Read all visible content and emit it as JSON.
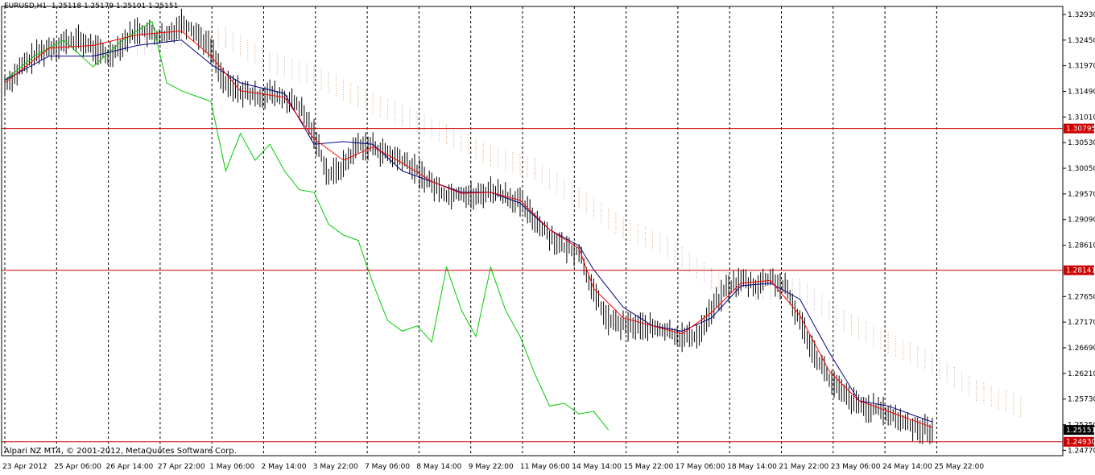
{
  "header": {
    "symbol_tf": "EURUSD,H1",
    "quote": "1.25118 1.25179 1.25101 1.25151"
  },
  "footer": {
    "copyright": "Alpari NZ MT4, © 2001-2012, MetaQuotes Software Corp."
  },
  "colors": {
    "background": "#ffffff",
    "grid": "#000000",
    "candles": "#000000",
    "tenkan": "#ff0000",
    "kijun": "#000080",
    "chikou": "#00cc00",
    "kumo_a": "#d2a679",
    "kumo_b": "#c8a2c8",
    "level": "#cc0000"
  },
  "chart_data": {
    "type": "line",
    "symbol": "EURUSD",
    "timeframe": "H1",
    "ylim": [
      1.2467,
      1.3308
    ],
    "y_ticks": [
      "1.32930",
      "1.32450",
      "1.31970",
      "1.31490",
      "1.31010",
      "1.30530",
      "1.30050",
      "1.29570",
      "1.29090",
      "1.28610",
      "1.27650",
      "1.27170",
      "1.26690",
      "1.26210",
      "1.25730",
      "1.25250",
      "1.24770"
    ],
    "x_ticks": [
      "23 Apr 2012",
      "25 Apr 06:00",
      "26 Apr 14:00",
      "27 Apr 22:00",
      "1 May 06:00",
      "2 May 14:00",
      "3 May 22:00",
      "7 May 06:00",
      "8 May 14:00",
      "9 May 22:00",
      "11 May 06:00",
      "14 May 14:00",
      "15 May 22:00",
      "17 May 06:00",
      "18 May 14:00",
      "21 May 22:00",
      "23 May 06:00",
      "24 May 14:00",
      "25 May 22:00"
    ],
    "horizontal_levels": [
      {
        "value": 1.30795,
        "label": "1.30795"
      },
      {
        "value": 1.28141,
        "label": "1.28141"
      },
      {
        "value": 1.2493,
        "label": "1.24930"
      }
    ],
    "current_price": {
      "value": 1.25151,
      "label": "1.25151"
    },
    "close_path": [
      [
        0,
        1.316
      ],
      [
        2,
        1.319
      ],
      [
        4,
        1.3215
      ],
      [
        6,
        1.323
      ],
      [
        8,
        1.324
      ],
      [
        10,
        1.3245
      ],
      [
        12,
        1.323
      ],
      [
        14,
        1.3215
      ],
      [
        16,
        1.324
      ],
      [
        18,
        1.3265
      ],
      [
        20,
        1.3255
      ],
      [
        22,
        1.325
      ],
      [
        24,
        1.328
      ],
      [
        26,
        1.326
      ],
      [
        28,
        1.323
      ],
      [
        30,
        1.316
      ],
      [
        32,
        1.315
      ],
      [
        34,
        1.314
      ],
      [
        36,
        1.3145
      ],
      [
        38,
        1.3135
      ],
      [
        40,
        1.312
      ],
      [
        42,
        1.307
      ],
      [
        44,
        1.299
      ],
      [
        46,
        1.301
      ],
      [
        48,
        1.305
      ],
      [
        50,
        1.3045
      ],
      [
        52,
        1.303
      ],
      [
        54,
        1.302
      ],
      [
        56,
        1.3
      ],
      [
        58,
        1.2975
      ],
      [
        60,
        1.2955
      ],
      [
        62,
        1.296
      ],
      [
        64,
        1.295
      ],
      [
        66,
        1.2965
      ],
      [
        68,
        1.2955
      ],
      [
        70,
        1.294
      ],
      [
        72,
        1.291
      ],
      [
        74,
        1.288
      ],
      [
        76,
        1.2855
      ],
      [
        78,
        1.285
      ],
      [
        80,
        1.277
      ],
      [
        82,
        1.272
      ],
      [
        84,
        1.271
      ],
      [
        86,
        1.271
      ],
      [
        88,
        1.2705
      ],
      [
        90,
        1.27
      ],
      [
        92,
        1.269
      ],
      [
        94,
        1.269
      ],
      [
        96,
        1.274
      ],
      [
        98,
        1.278
      ],
      [
        100,
        1.2795
      ],
      [
        102,
        1.2785
      ],
      [
        104,
        1.28
      ],
      [
        106,
        1.278
      ],
      [
        108,
        1.272
      ],
      [
        110,
        1.266
      ],
      [
        112,
        1.261
      ],
      [
        114,
        1.258
      ],
      [
        116,
        1.256
      ],
      [
        118,
        1.2555
      ],
      [
        120,
        1.2545
      ],
      [
        122,
        1.253
      ],
      [
        124,
        1.252
      ],
      [
        126,
        1.2515
      ]
    ],
    "chikou_path": [
      [
        0,
        1.317
      ],
      [
        4,
        1.3215
      ],
      [
        8,
        1.3245
      ],
      [
        12,
        1.3195
      ],
      [
        16,
        1.3245
      ],
      [
        20,
        1.328
      ],
      [
        22,
        1.3165
      ],
      [
        24,
        1.315
      ],
      [
        26,
        1.314
      ],
      [
        28,
        1.313
      ],
      [
        30,
        1.3
      ],
      [
        32,
        1.307
      ],
      [
        34,
        1.302
      ],
      [
        36,
        1.305
      ],
      [
        38,
        1.3
      ],
      [
        40,
        1.2965
      ],
      [
        42,
        1.296
      ],
      [
        44,
        1.29
      ],
      [
        46,
        1.288
      ],
      [
        48,
        1.287
      ],
      [
        50,
        1.279
      ],
      [
        52,
        1.272
      ],
      [
        54,
        1.27
      ],
      [
        56,
        1.271
      ],
      [
        58,
        1.268
      ],
      [
        60,
        1.282
      ],
      [
        62,
        1.274
      ],
      [
        64,
        1.269
      ],
      [
        66,
        1.282
      ],
      [
        68,
        1.274
      ],
      [
        70,
        1.269
      ],
      [
        72,
        1.262
      ],
      [
        74,
        1.256
      ],
      [
        76,
        1.2565
      ],
      [
        78,
        1.2545
      ],
      [
        80,
        1.255
      ],
      [
        82,
        1.2515
      ]
    ],
    "tenkan_path": [
      [
        0,
        1.3165
      ],
      [
        6,
        1.323
      ],
      [
        12,
        1.3235
      ],
      [
        18,
        1.3255
      ],
      [
        24,
        1.3262
      ],
      [
        28,
        1.3215
      ],
      [
        32,
        1.315
      ],
      [
        38,
        1.3138
      ],
      [
        42,
        1.306
      ],
      [
        46,
        1.302
      ],
      [
        50,
        1.3045
      ],
      [
        54,
        1.3015
      ],
      [
        58,
        1.298
      ],
      [
        62,
        1.2958
      ],
      [
        66,
        1.296
      ],
      [
        70,
        1.2945
      ],
      [
        74,
        1.289
      ],
      [
        78,
        1.2855
      ],
      [
        80,
        1.278
      ],
      [
        84,
        1.2725
      ],
      [
        88,
        1.271
      ],
      [
        92,
        1.2695
      ],
      [
        96,
        1.2735
      ],
      [
        100,
        1.279
      ],
      [
        104,
        1.2795
      ],
      [
        108,
        1.273
      ],
      [
        112,
        1.2625
      ],
      [
        116,
        1.257
      ],
      [
        120,
        1.255
      ],
      [
        124,
        1.253
      ],
      [
        126,
        1.252
      ]
    ],
    "kijun_path": [
      [
        0,
        1.317
      ],
      [
        6,
        1.3215
      ],
      [
        12,
        1.3215
      ],
      [
        18,
        1.3235
      ],
      [
        24,
        1.3245
      ],
      [
        28,
        1.32
      ],
      [
        32,
        1.3165
      ],
      [
        38,
        1.3145
      ],
      [
        42,
        1.305
      ],
      [
        46,
        1.3055
      ],
      [
        50,
        1.305
      ],
      [
        54,
        1.3
      ],
      [
        58,
        1.298
      ],
      [
        62,
        1.296
      ],
      [
        66,
        1.296
      ],
      [
        70,
        1.294
      ],
      [
        74,
        1.289
      ],
      [
        78,
        1.286
      ],
      [
        80,
        1.2815
      ],
      [
        84,
        1.2745
      ],
      [
        88,
        1.271
      ],
      [
        92,
        1.27
      ],
      [
        96,
        1.2725
      ],
      [
        100,
        1.2785
      ],
      [
        104,
        1.279
      ],
      [
        108,
        1.276
      ],
      [
        112,
        1.266
      ],
      [
        116,
        1.257
      ],
      [
        120,
        1.256
      ],
      [
        124,
        1.254
      ],
      [
        126,
        1.253
      ]
    ],
    "kumo_path": [
      [
        18,
        1.3215
      ],
      [
        24,
        1.3235
      ],
      [
        30,
        1.323
      ],
      [
        36,
        1.3185
      ],
      [
        42,
        1.316
      ],
      [
        48,
        1.312
      ],
      [
        54,
        1.3085
      ],
      [
        60,
        1.305
      ],
      [
        66,
        1.301
      ],
      [
        72,
        1.2985
      ],
      [
        78,
        1.293
      ],
      [
        84,
        1.2875
      ],
      [
        90,
        1.284
      ],
      [
        96,
        1.278
      ],
      [
        102,
        1.276
      ],
      [
        108,
        1.276
      ],
      [
        114,
        1.27
      ],
      [
        120,
        1.266
      ],
      [
        126,
        1.262
      ],
      [
        132,
        1.257
      ],
      [
        138,
        1.254
      ]
    ],
    "kumo_width": 0.004
  }
}
